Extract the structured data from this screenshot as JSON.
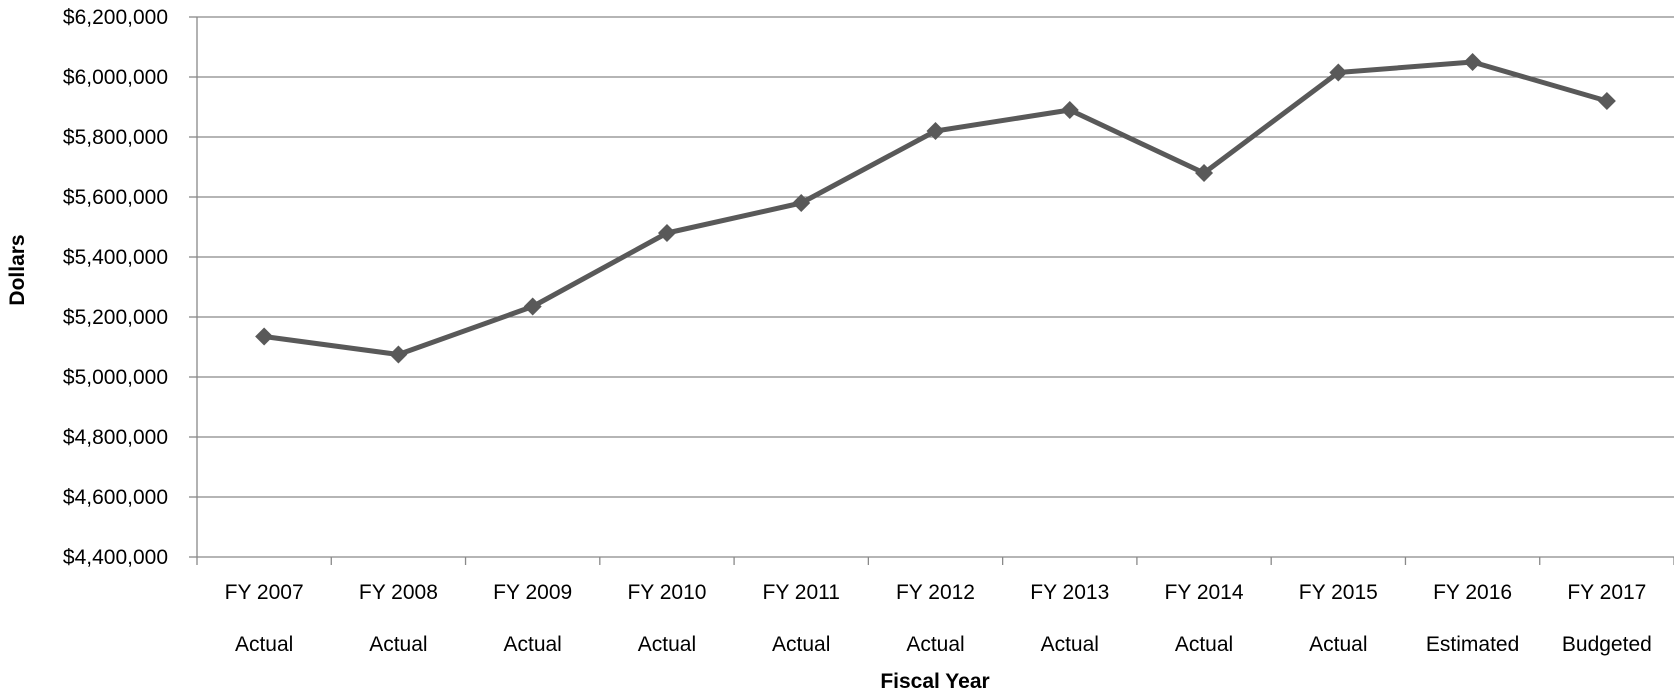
{
  "chart_data": {
    "type": "line",
    "title": "",
    "xlabel": "Fiscal Year",
    "ylabel": "Dollars",
    "categories": [
      [
        "FY 2007",
        "Actual"
      ],
      [
        "FY 2008",
        "Actual"
      ],
      [
        "FY 2009",
        "Actual"
      ],
      [
        "FY 2010",
        "Actual"
      ],
      [
        "FY 2011",
        "Actual"
      ],
      [
        "FY 2012",
        "Actual"
      ],
      [
        "FY 2013",
        "Actual"
      ],
      [
        "FY 2014",
        "Actual"
      ],
      [
        "FY 2015",
        "Actual"
      ],
      [
        "FY 2016",
        "Estimated"
      ],
      [
        "FY 2017",
        "Budgeted"
      ]
    ],
    "series": [
      {
        "values": [
          5135000,
          5075000,
          5235000,
          5480000,
          5580000,
          5820000,
          5890000,
          5680000,
          6015000,
          6050000,
          5920000
        ],
        "color": "#595959",
        "marker": "diamond"
      }
    ],
    "ylim": [
      4400000,
      6200000
    ],
    "ytick_step": 200000,
    "ytick_labels": [
      "$4,400,000",
      "$4,600,000",
      "$4,800,000",
      "$5,000,000",
      "$5,200,000",
      "$5,400,000",
      "$5,600,000",
      "$5,800,000",
      "$6,000,000",
      "$6,200,000"
    ],
    "grid": true,
    "gridline_color": "#898989",
    "legend": "none"
  }
}
